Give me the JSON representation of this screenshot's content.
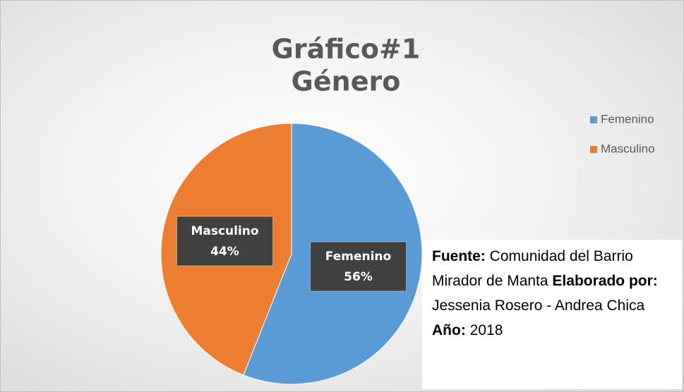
{
  "chart_data": {
    "type": "pie",
    "title": "Gráfico#1",
    "subtitle": "Género",
    "categories": [
      "Femenino",
      "Masculino"
    ],
    "values": [
      56,
      44
    ],
    "value_labels": [
      "56%",
      "44%"
    ],
    "colors": [
      "#5b9bd5",
      "#ed7d31"
    ],
    "legend": "right",
    "annotations": [
      {
        "label": "Fuente:",
        "text": "Comunidad del Barrio Mirador de Manta"
      },
      {
        "label": "Elaborado por:",
        "text": "Jessenia Rosero - Andrea Chica"
      },
      {
        "label": "Año:",
        "text": "2018"
      }
    ]
  }
}
